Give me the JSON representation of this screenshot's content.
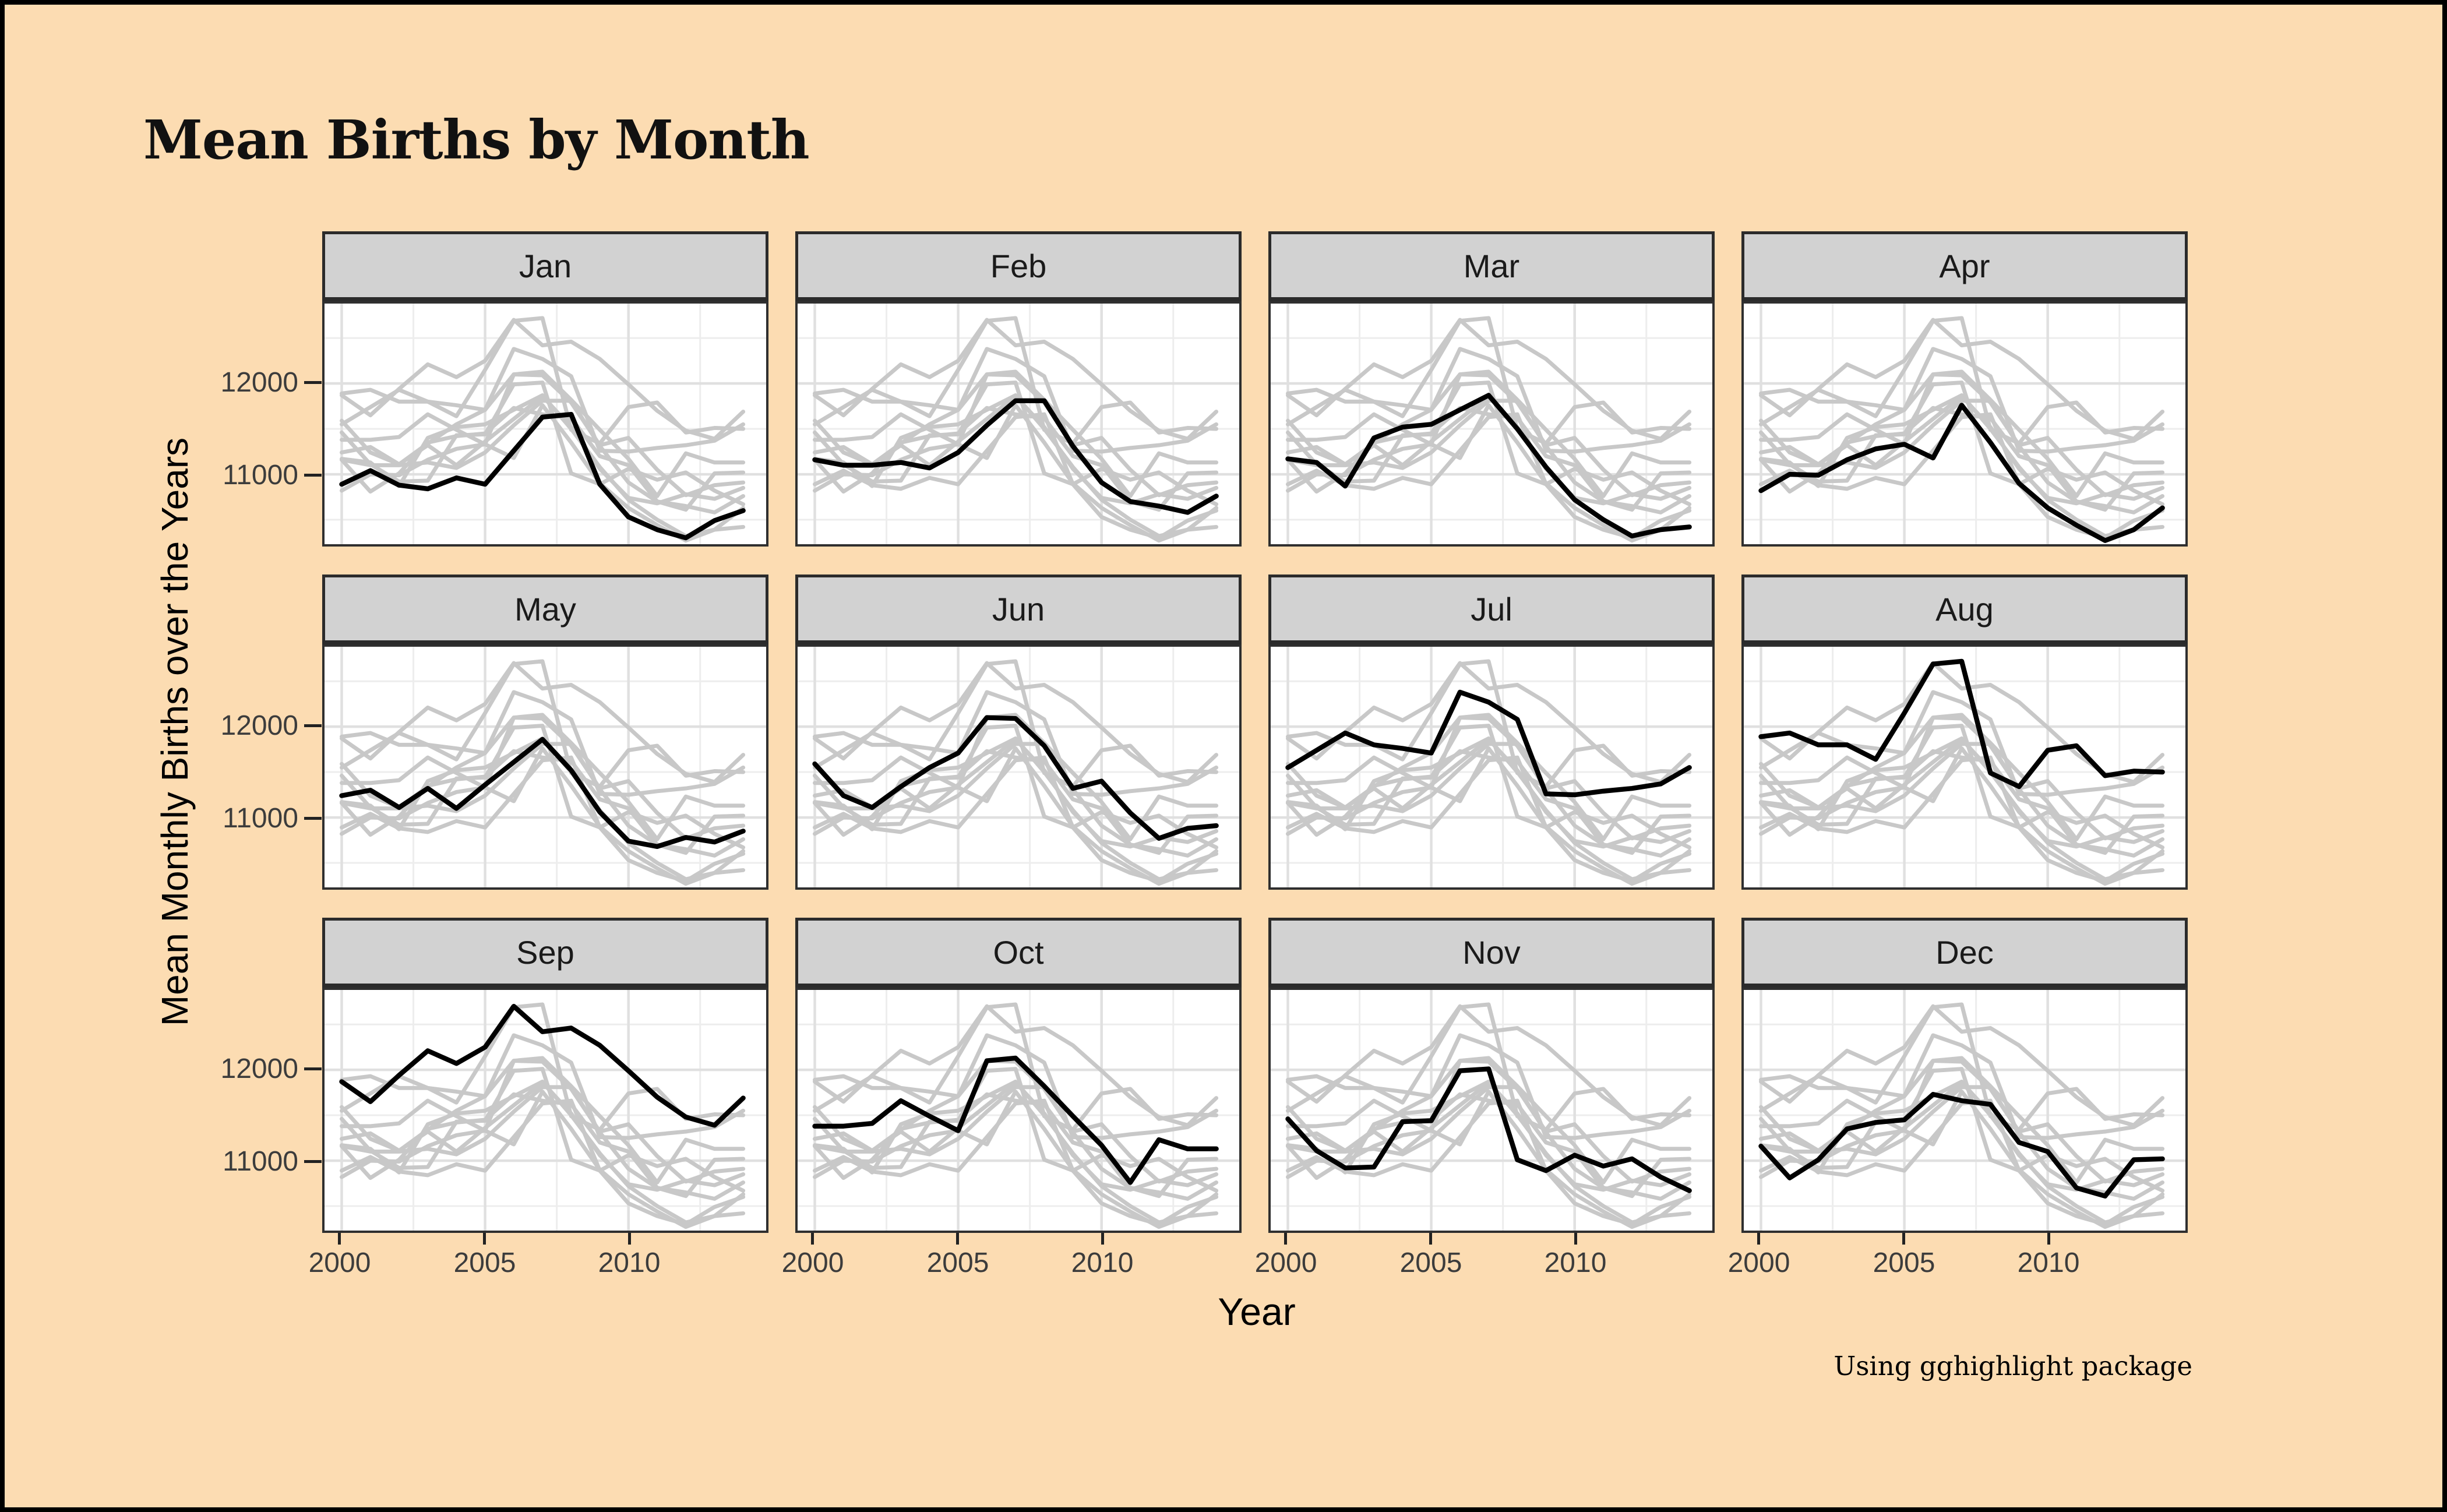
{
  "title": "Mean Births by Month",
  "caption": "Using gghighlight package",
  "axes": {
    "x_label": "Year",
    "y_label": "Mean Monthly Births over the Years",
    "x_ticks": [
      2000,
      2005,
      2010
    ],
    "y_ticks": [
      12000,
      11000
    ],
    "x_minor": [
      2002.5,
      2007.5,
      2012.5
    ],
    "y_minor": [
      10500,
      11500,
      12500
    ],
    "x_domain": [
      1999.4,
      2014.8
    ],
    "y_domain": [
      10230,
      12880
    ]
  },
  "colors": {
    "background": "#FCDCB2",
    "frame": "#000000",
    "strip_fill": "#D2D2D2",
    "strip_border": "#2B2B2B",
    "panel_background": "#FFFFFF",
    "panel_border": "#2F2F2F",
    "grid_major": "#E0E0E0",
    "grid_minor": "#EDEDED",
    "highlight_line": "#000000",
    "unhighlighted_line": "#C8C8C8",
    "tick_text": "#3C3C3C"
  },
  "chart_data": {
    "type": "line",
    "title": "Mean Births by Month",
    "xlabel": "Year",
    "ylabel": "Mean Monthly Births over the Years",
    "facet_note": "12 facets, one per month; each facet highlights that month's series in black (gghighlight), all other months drawn in gray behind it",
    "grid": "on",
    "legend": "none",
    "x": [
      2000,
      2001,
      2002,
      2003,
      2004,
      2005,
      2006,
      2007,
      2008,
      2009,
      2010,
      2011,
      2012,
      2013,
      2014
    ],
    "facets": [
      "Jan",
      "Feb",
      "Mar",
      "Apr",
      "May",
      "Jun",
      "Jul",
      "Aug",
      "Sep",
      "Oct",
      "Nov",
      "Dec"
    ],
    "series": [
      {
        "name": "Jan",
        "values": [
          10890,
          11040,
          10880,
          10840,
          10960,
          10890,
          11260,
          11630,
          11660,
          10890,
          10530,
          10390,
          10300,
          10490,
          10600
        ]
      },
      {
        "name": "Feb",
        "values": [
          11160,
          11100,
          11100,
          11130,
          11070,
          11240,
          11540,
          11810,
          11810,
          11310,
          10910,
          10700,
          10650,
          10580,
          10760
        ]
      },
      {
        "name": "Mar",
        "values": [
          11170,
          11130,
          10870,
          11400,
          11520,
          11550,
          11710,
          11870,
          11500,
          11080,
          10720,
          10500,
          10320,
          10390,
          10420
        ]
      },
      {
        "name": "Apr",
        "values": [
          10820,
          11000,
          10990,
          11160,
          11280,
          11330,
          11180,
          11760,
          11350,
          10900,
          10630,
          10440,
          10270,
          10390,
          10630
        ]
      },
      {
        "name": "May",
        "values": [
          11240,
          11300,
          11110,
          11320,
          11100,
          11360,
          11610,
          11860,
          11520,
          11060,
          10740,
          10680,
          10780,
          10730,
          10850
        ]
      },
      {
        "name": "Jun",
        "values": [
          11590,
          11240,
          11110,
          11340,
          11550,
          11710,
          12100,
          12090,
          11790,
          11320,
          11400,
          11050,
          10770,
          10880,
          10910
        ]
      },
      {
        "name": "Jul",
        "values": [
          11550,
          11740,
          11930,
          11800,
          11760,
          11710,
          12380,
          12270,
          12080,
          11260,
          11250,
          11290,
          11320,
          11370,
          11550
        ]
      },
      {
        "name": "Aug",
        "values": [
          11890,
          11930,
          11800,
          11800,
          11640,
          12150,
          12690,
          12720,
          11490,
          11340,
          11740,
          11790,
          11460,
          11510,
          11500
        ]
      },
      {
        "name": "Sep",
        "values": [
          11870,
          11650,
          11940,
          12210,
          12070,
          12250,
          12700,
          12420,
          12460,
          12270,
          11990,
          11700,
          11480,
          11390,
          11690
        ]
      },
      {
        "name": "Oct",
        "values": [
          11380,
          11380,
          11410,
          11660,
          11490,
          11330,
          12100,
          12130,
          11820,
          11490,
          11170,
          10760,
          11230,
          11130,
          11130
        ]
      },
      {
        "name": "Nov",
        "values": [
          11460,
          11110,
          10920,
          10930,
          11430,
          11440,
          11990,
          12010,
          11010,
          10890,
          11060,
          10940,
          11020,
          10820,
          10670
        ]
      },
      {
        "name": "Dec",
        "values": [
          11160,
          10810,
          11010,
          11350,
          11420,
          11450,
          11730,
          11660,
          11620,
          11200,
          11100,
          10700,
          10610,
          11010,
          11020
        ]
      }
    ]
  }
}
